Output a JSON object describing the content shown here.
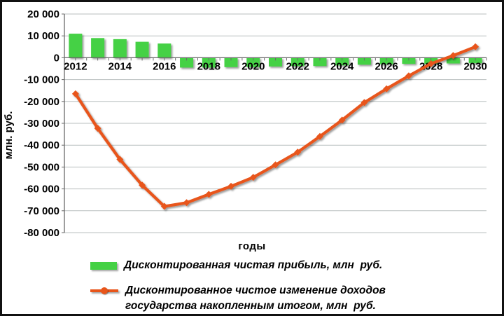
{
  "chart_data": {
    "type": "bar",
    "categories": [
      2012,
      2013,
      2014,
      2015,
      2016,
      2017,
      2018,
      2019,
      2020,
      2021,
      2022,
      2023,
      2024,
      2025,
      2026,
      2027,
      2028,
      2029,
      2030
    ],
    "series": [
      {
        "name": "Дисконтированная чистая прибыль, млн  руб.",
        "type": "bar",
        "color": "#44d144",
        "values": [
          11000,
          9000,
          8500,
          7300,
          6500,
          -4500,
          -4500,
          -4300,
          -4300,
          -4000,
          -3800,
          -3800,
          -3500,
          -3200,
          -3000,
          -2800,
          -2800,
          -2600,
          -2500
        ]
      },
      {
        "name": "Дисконтированное чистое изменение доходов государства накопленным итогом, млн  руб.",
        "type": "line",
        "color": "#e8551a",
        "values": [
          -16500,
          -32300,
          -46500,
          -58300,
          -68000,
          -66300,
          -62500,
          -58800,
          -54700,
          -49000,
          -43200,
          -36000,
          -28500,
          -20500,
          -14200,
          -8300,
          -2700,
          1000,
          5000
        ]
      }
    ],
    "title": "",
    "xlabel": "годы",
    "ylabel": "млн. руб.",
    "ylim": [
      -80000,
      20000
    ],
    "ytick_step": 10000,
    "ytick_labels": [
      "20 000",
      "10 000",
      "0",
      "-10 000",
      "-20 000",
      "-30 000",
      "-40 000",
      "-50 000",
      "-60 000",
      "-70 000",
      "-80 000"
    ],
    "xtick_labels": [
      "2012",
      "2014",
      "2016",
      "2018",
      "2020",
      "2022",
      "2024",
      "2026",
      "2028",
      "2030"
    ],
    "grid": "horizontal",
    "legend_position": "bottom"
  },
  "legend": {
    "item1": "Дисконтированная чистая прибыль, млн  руб.",
    "item2_line1": "Дисконтированное чистое изменение доходов",
    "item2_line2": "государства накопленным итогом, млн  руб."
  },
  "colors": {
    "bar": "#44d144",
    "line": "#e8551a",
    "grid": "#b9bfbf",
    "axis": "#6a6a6a",
    "text": "#000000"
  }
}
